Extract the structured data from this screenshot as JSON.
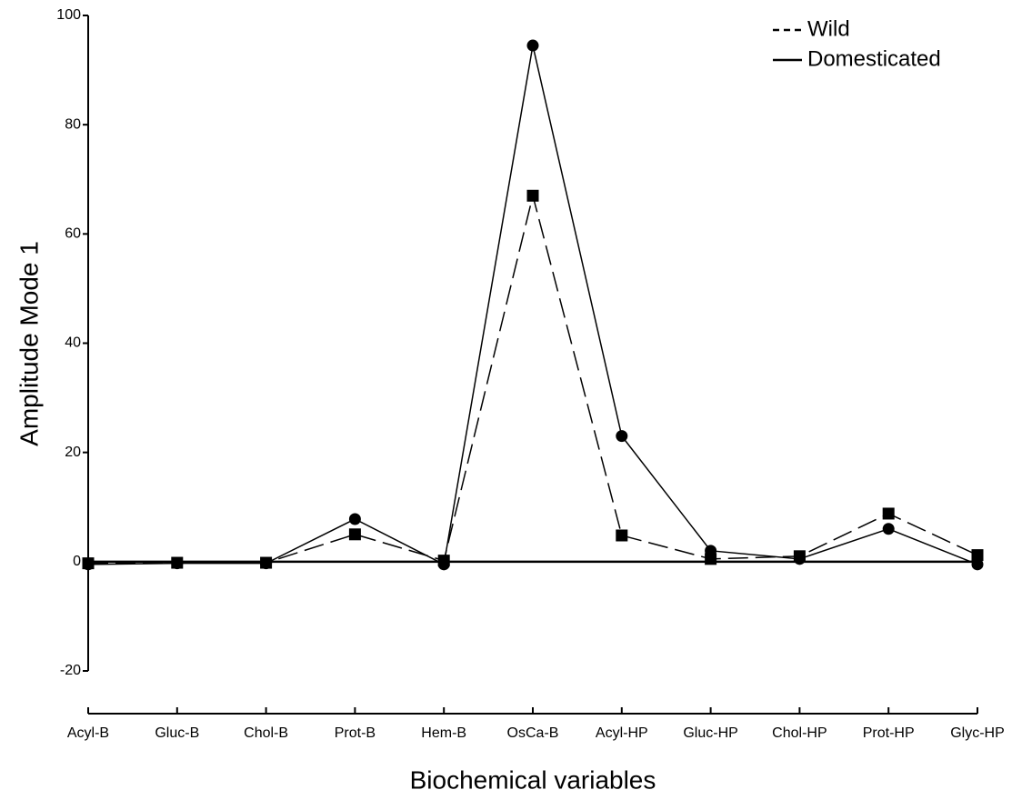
{
  "chart_data": {
    "type": "line",
    "y_label": "Amplitude Mode 1",
    "x_label": "Biochemical variables",
    "categories": [
      "Acyl-B",
      "Gluc-B",
      "Chol-B",
      "Prot-B",
      "Hem-B",
      "OsCa-B",
      "Acyl-HP",
      "Gluc-HP",
      "Chol-HP",
      "Prot-HP",
      "Glyc-HP"
    ],
    "series": [
      {
        "name": "Wild",
        "color": "#000000",
        "dash": "dashed",
        "marker": "square",
        "values": [
          -0.3,
          -0.2,
          -0.2,
          5,
          0.2,
          67,
          4.8,
          0.5,
          1,
          8.8,
          1.2
        ]
      },
      {
        "name": "Domesticated",
        "color": "#000000",
        "dash": "solid",
        "marker": "circle",
        "values": [
          -0.5,
          -0.3,
          -0.3,
          7.8,
          -0.5,
          94.5,
          23,
          2,
          0.5,
          6,
          -0.5
        ]
      }
    ],
    "ylim": [
      -20,
      100
    ],
    "yticks": [
      -20,
      0,
      20,
      40,
      60,
      80,
      100
    ],
    "grid": false,
    "legend": "upper right"
  }
}
